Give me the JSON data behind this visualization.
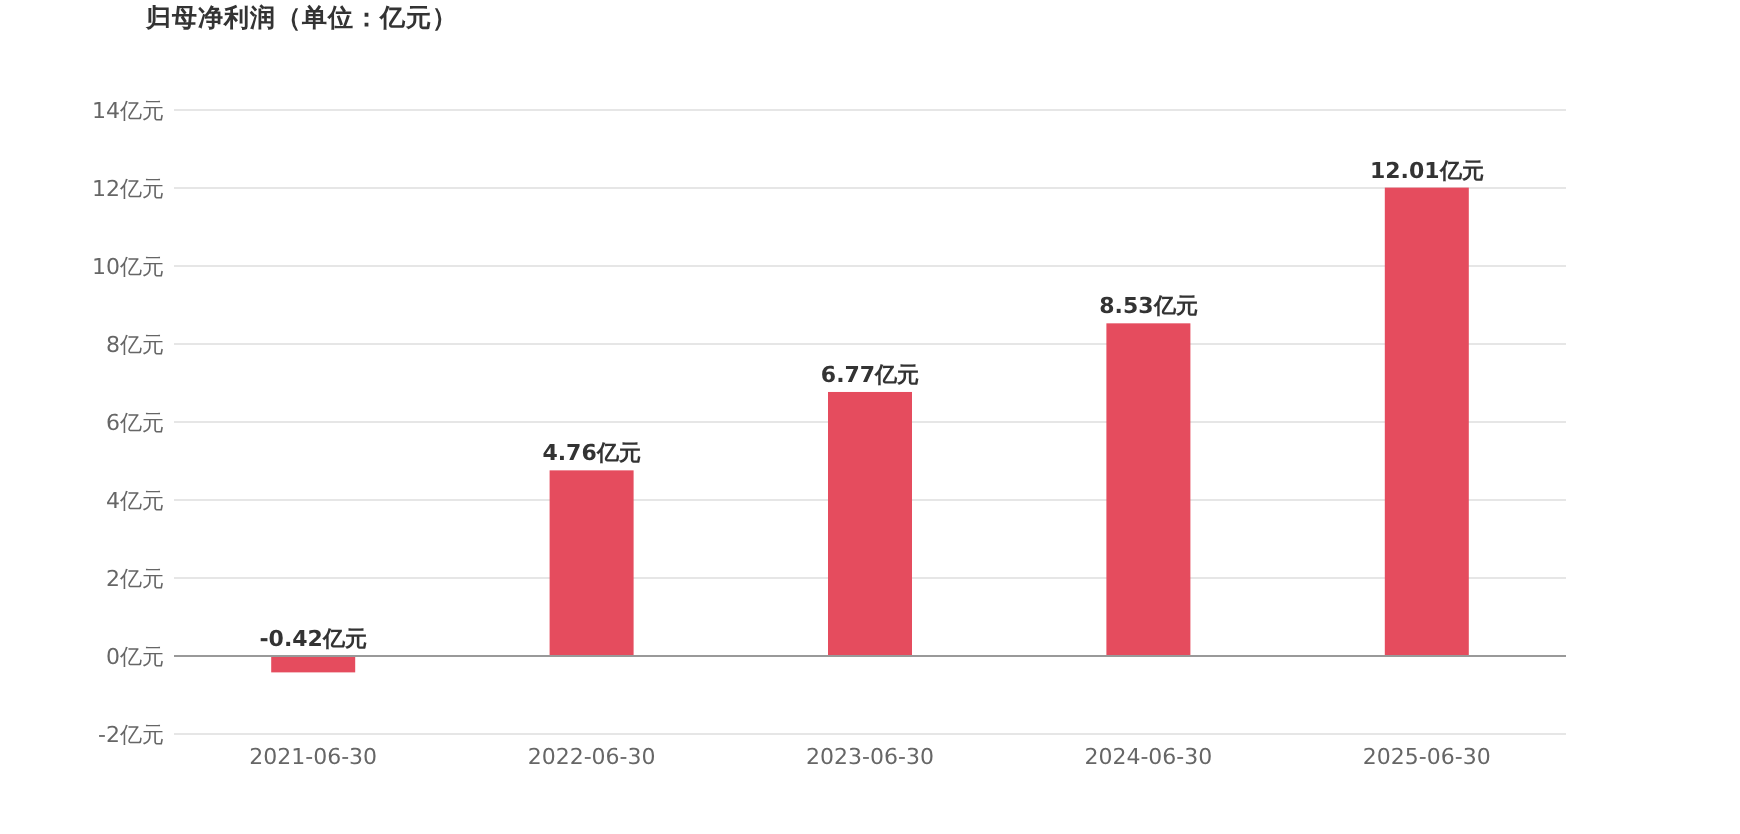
{
  "chart_data": {
    "type": "bar",
    "title": "归母净利润（单位：亿元）",
    "categories": [
      "2021-06-30",
      "2022-06-30",
      "2023-06-30",
      "2024-06-30",
      "2025-06-30"
    ],
    "values": [
      -0.42,
      4.76,
      6.77,
      8.53,
      12.01
    ],
    "value_labels": [
      "-0.42亿元",
      "4.76亿元",
      "6.77亿元",
      "8.53亿元",
      "12.01亿元"
    ],
    "color": "#e54c5e",
    "ylim": [
      -2,
      14
    ],
    "yticks": [
      {
        "value": -2,
        "label": "-2亿元"
      },
      {
        "value": 0,
        "label": "0亿元"
      },
      {
        "value": 2,
        "label": "2亿元"
      },
      {
        "value": 4,
        "label": "4亿元"
      },
      {
        "value": 6,
        "label": "6亿元"
      },
      {
        "value": 8,
        "label": "8亿元"
      },
      {
        "value": 10,
        "label": "10亿元"
      },
      {
        "value": 12,
        "label": "12亿元"
      },
      {
        "value": 14,
        "label": "14亿元"
      }
    ],
    "grid": "y"
  }
}
